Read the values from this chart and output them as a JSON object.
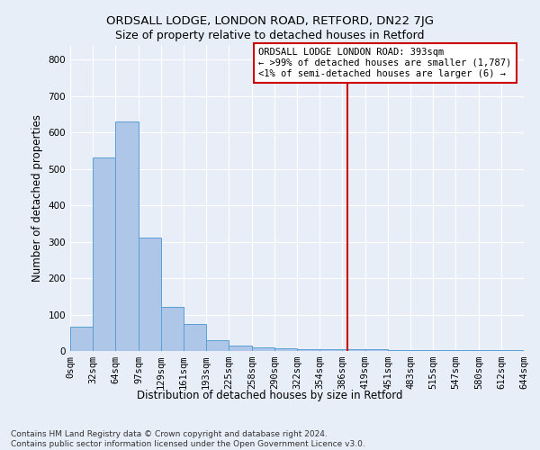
{
  "title": "ORDSALL LODGE, LONDON ROAD, RETFORD, DN22 7JG",
  "subtitle": "Size of property relative to detached houses in Retford",
  "xlabel": "Distribution of detached houses by size in Retford",
  "ylabel": "Number of detached properties",
  "footnote1": "Contains HM Land Registry data © Crown copyright and database right 2024.",
  "footnote2": "Contains public sector information licensed under the Open Government Licence v3.0.",
  "bin_edges": [
    0,
    32,
    64,
    97,
    129,
    161,
    193,
    225,
    258,
    290,
    322,
    354,
    386,
    419,
    451,
    483,
    515,
    547,
    580,
    612,
    644
  ],
  "bin_labels": [
    "0sqm",
    "32sqm",
    "64sqm",
    "97sqm",
    "129sqm",
    "161sqm",
    "193sqm",
    "225sqm",
    "258sqm",
    "290sqm",
    "322sqm",
    "354sqm",
    "386sqm",
    "419sqm",
    "451sqm",
    "483sqm",
    "515sqm",
    "547sqm",
    "580sqm",
    "612sqm",
    "644sqm"
  ],
  "bar_heights": [
    67,
    530,
    630,
    312,
    120,
    75,
    30,
    15,
    10,
    7,
    5,
    4,
    5,
    4,
    3,
    3,
    3,
    3,
    3,
    3
  ],
  "bar_color": "#aec6e8",
  "bar_edge_color": "#5a9fd4",
  "background_color": "#e8eef8",
  "grid_color": "#ffffff",
  "red_line_x": 393,
  "ylim": [
    0,
    840
  ],
  "yticks": [
    0,
    100,
    200,
    300,
    400,
    500,
    600,
    700,
    800
  ],
  "annotation_title": "ORDSALL LODGE LONDON ROAD: 393sqm",
  "annotation_line1": "← >99% of detached houses are smaller (1,787)",
  "annotation_line2": "<1% of semi-detached houses are larger (6) →",
  "annotation_box_color": "#ffffff",
  "annotation_border_color": "#cc0000",
  "red_line_color": "#cc0000",
  "title_fontsize": 9.5,
  "subtitle_fontsize": 9,
  "axis_label_fontsize": 8.5,
  "tick_fontsize": 7.5,
  "annotation_fontsize": 7.5
}
